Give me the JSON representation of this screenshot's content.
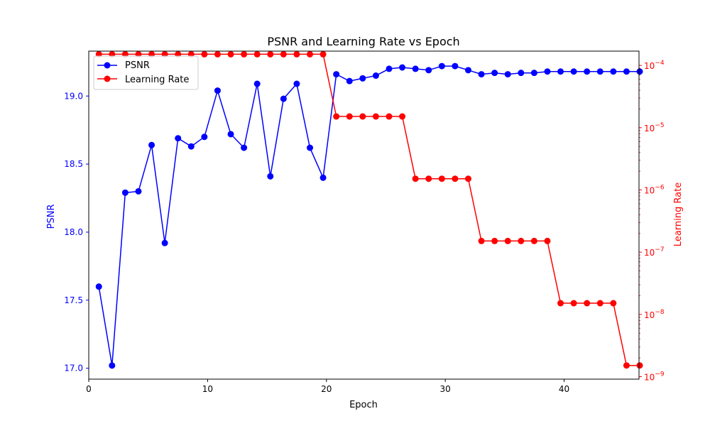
{
  "chart_data": {
    "type": "line",
    "title": "PSNR and Learning Rate vs Epoch",
    "xlabel": "Epoch",
    "xlim": [
      0,
      46.3
    ],
    "xticks": [
      0,
      10,
      20,
      30,
      40
    ],
    "left_axis": {
      "label": "PSNR",
      "color": "#0000ff",
      "ylim": [
        16.92,
        19.33
      ],
      "ticks": [
        17.0,
        17.5,
        18.0,
        18.5,
        19.0
      ],
      "tick_labels": [
        "17.0",
        "17.5",
        "18.0",
        "18.5",
        "19.0"
      ]
    },
    "right_axis": {
      "label": "Learning Rate",
      "color": "#ff0000",
      "scale": "log",
      "ylim_log10": [
        -9.04,
        -3.77
      ],
      "ticks_log10": [
        -9,
        -8,
        -7,
        -6,
        -5,
        -4
      ],
      "tick_labels": [
        "10−9",
        "10−8",
        "10−7",
        "10−6",
        "10−5",
        "10−4"
      ]
    },
    "series": [
      {
        "name": "PSNR",
        "axis": "left",
        "color": "#0000ff",
        "x": [
          0.85,
          1.96,
          3.07,
          4.18,
          5.29,
          6.4,
          7.51,
          8.62,
          9.73,
          10.84,
          11.95,
          13.06,
          14.17,
          15.28,
          16.39,
          17.5,
          18.61,
          19.72,
          20.83,
          21.94,
          23.05,
          24.16,
          25.27,
          26.38,
          27.49,
          28.6,
          29.71,
          30.82,
          31.93,
          33.04,
          34.15,
          35.26,
          36.37,
          37.48,
          38.59,
          39.7,
          40.81,
          41.92,
          43.03,
          44.14,
          45.25,
          46.36
        ],
        "values": [
          17.6,
          17.02,
          18.29,
          18.3,
          18.64,
          17.92,
          18.69,
          18.63,
          18.7,
          19.04,
          18.72,
          18.62,
          19.09,
          18.41,
          18.98,
          19.09,
          18.62,
          18.4,
          19.16,
          19.11,
          19.13,
          19.15,
          19.2,
          19.21,
          19.2,
          19.19,
          19.22,
          19.22,
          19.19,
          19.16,
          19.17,
          19.16,
          19.17,
          19.17,
          19.18,
          19.18,
          19.18,
          19.18,
          19.18,
          19.18,
          19.18,
          19.18
        ]
      },
      {
        "name": "Learning Rate",
        "axis": "right",
        "color": "#ff0000",
        "x": [
          0.85,
          1.96,
          3.07,
          4.18,
          5.29,
          6.4,
          7.51,
          8.62,
          9.73,
          10.84,
          11.95,
          13.06,
          14.17,
          15.28,
          16.39,
          17.5,
          18.61,
          19.72,
          20.83,
          21.94,
          23.05,
          24.16,
          25.27,
          26.38,
          27.49,
          28.6,
          29.71,
          30.82,
          31.93,
          33.04,
          34.15,
          35.26,
          36.37,
          37.48,
          38.59,
          39.7,
          40.81,
          41.92,
          43.03,
          44.14,
          45.25,
          46.36
        ],
        "values_log10": [
          -3.82,
          -3.82,
          -3.82,
          -3.82,
          -3.82,
          -3.82,
          -3.82,
          -3.82,
          -3.82,
          -3.82,
          -3.82,
          -3.82,
          -3.82,
          -3.82,
          -3.82,
          -3.82,
          -3.82,
          -3.82,
          -4.82,
          -4.82,
          -4.82,
          -4.82,
          -4.82,
          -4.82,
          -5.82,
          -5.82,
          -5.82,
          -5.82,
          -5.82,
          -6.82,
          -6.82,
          -6.82,
          -6.82,
          -6.82,
          -6.82,
          -7.82,
          -7.82,
          -7.82,
          -7.82,
          -7.82,
          -8.82,
          -8.82
        ]
      }
    ],
    "legend": {
      "placement": "top-left",
      "entries": [
        "PSNR",
        "Learning Rate"
      ]
    }
  }
}
